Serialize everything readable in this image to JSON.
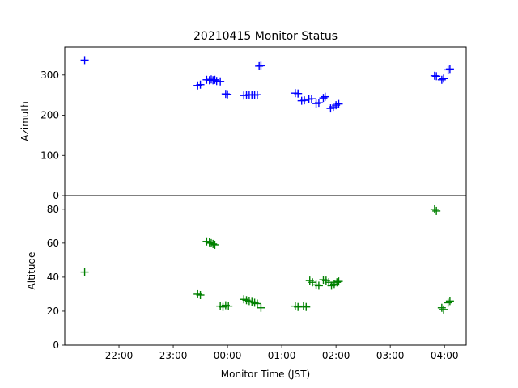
{
  "chart_data": {
    "type": "scatter",
    "title": "20210415 Monitor Status",
    "xlabel": "Monitor Time (JST)",
    "x_ticks": [
      "22:00",
      "23:00",
      "00:00",
      "01:00",
      "02:00",
      "03:00",
      "04:00"
    ],
    "x_ticks_hours": [
      22,
      23,
      24,
      25,
      26,
      27,
      28
    ],
    "xlim_hours": [
      21.0,
      28.4
    ],
    "grid": false,
    "marker": "+",
    "panels": [
      {
        "name": "azimuth",
        "ylabel": "Azimuth",
        "color": "#0000ff",
        "ylim": [
          0,
          370
        ],
        "y_ticks": [
          0,
          100,
          200,
          300
        ],
        "points": [
          {
            "x": "21:22",
            "y": 337
          },
          {
            "x": "23:27",
            "y": 274
          },
          {
            "x": "23:30",
            "y": 276
          },
          {
            "x": "23:37",
            "y": 288
          },
          {
            "x": "23:40",
            "y": 287
          },
          {
            "x": "23:42",
            "y": 289
          },
          {
            "x": "23:44",
            "y": 287
          },
          {
            "x": "23:46",
            "y": 288
          },
          {
            "x": "23:48",
            "y": 285
          },
          {
            "x": "23:52",
            "y": 284
          },
          {
            "x": "23:58",
            "y": 253
          },
          {
            "x": "00:00",
            "y": 252
          },
          {
            "x": "00:18",
            "y": 249
          },
          {
            "x": "00:21",
            "y": 250
          },
          {
            "x": "00:24",
            "y": 251
          },
          {
            "x": "00:27",
            "y": 251
          },
          {
            "x": "00:30",
            "y": 250
          },
          {
            "x": "00:33",
            "y": 251
          },
          {
            "x": "00:35",
            "y": 322
          },
          {
            "x": "00:37",
            "y": 323
          },
          {
            "x": "01:15",
            "y": 255
          },
          {
            "x": "01:18",
            "y": 254
          },
          {
            "x": "01:22",
            "y": 236
          },
          {
            "x": "01:25",
            "y": 237
          },
          {
            "x": "01:30",
            "y": 240
          },
          {
            "x": "01:33",
            "y": 241
          },
          {
            "x": "01:38",
            "y": 229
          },
          {
            "x": "01:41",
            "y": 231
          },
          {
            "x": "01:46",
            "y": 243
          },
          {
            "x": "01:48",
            "y": 246
          },
          {
            "x": "01:54",
            "y": 217
          },
          {
            "x": "01:57",
            "y": 221
          },
          {
            "x": "02:00",
            "y": 225
          },
          {
            "x": "02:03",
            "y": 228
          },
          {
            "x": "03:49",
            "y": 298
          },
          {
            "x": "03:51",
            "y": 297
          },
          {
            "x": "03:57",
            "y": 288
          },
          {
            "x": "03:59",
            "y": 291
          },
          {
            "x": "04:04",
            "y": 313
          },
          {
            "x": "04:06",
            "y": 315
          }
        ]
      },
      {
        "name": "altitude",
        "ylabel": "Altitude",
        "color": "#008000",
        "ylim": [
          0,
          88
        ],
        "y_ticks": [
          0,
          20,
          40,
          60,
          80
        ],
        "points": [
          {
            "x": "21:22",
            "y": 43
          },
          {
            "x": "23:27",
            "y": 30
          },
          {
            "x": "23:30",
            "y": 29.5
          },
          {
            "x": "23:37",
            "y": 61
          },
          {
            "x": "23:40",
            "y": 60.5
          },
          {
            "x": "23:42",
            "y": 60
          },
          {
            "x": "23:44",
            "y": 59.5
          },
          {
            "x": "23:46",
            "y": 59
          },
          {
            "x": "23:52",
            "y": 23
          },
          {
            "x": "23:55",
            "y": 22.5
          },
          {
            "x": "23:58",
            "y": 23.5
          },
          {
            "x": "00:01",
            "y": 23
          },
          {
            "x": "00:18",
            "y": 27
          },
          {
            "x": "00:21",
            "y": 26.5
          },
          {
            "x": "00:24",
            "y": 26
          },
          {
            "x": "00:27",
            "y": 25.5
          },
          {
            "x": "00:30",
            "y": 25
          },
          {
            "x": "00:33",
            "y": 24.5
          },
          {
            "x": "00:37",
            "y": 22
          },
          {
            "x": "01:15",
            "y": 23
          },
          {
            "x": "01:18",
            "y": 22.5
          },
          {
            "x": "01:24",
            "y": 23
          },
          {
            "x": "01:27",
            "y": 22.5
          },
          {
            "x": "01:31",
            "y": 38
          },
          {
            "x": "01:34",
            "y": 37
          },
          {
            "x": "01:38",
            "y": 35.5
          },
          {
            "x": "01:41",
            "y": 35
          },
          {
            "x": "01:46",
            "y": 38.5
          },
          {
            "x": "01:49",
            "y": 38
          },
          {
            "x": "01:52",
            "y": 37
          },
          {
            "x": "01:55",
            "y": 35
          },
          {
            "x": "01:58",
            "y": 36
          },
          {
            "x": "02:01",
            "y": 37
          },
          {
            "x": "02:03",
            "y": 37.5
          },
          {
            "x": "03:49",
            "y": 80
          },
          {
            "x": "03:51",
            "y": 79
          },
          {
            "x": "03:57",
            "y": 22
          },
          {
            "x": "03:59",
            "y": 21
          },
          {
            "x": "04:04",
            "y": 25
          },
          {
            "x": "04:06",
            "y": 26
          }
        ]
      }
    ]
  }
}
